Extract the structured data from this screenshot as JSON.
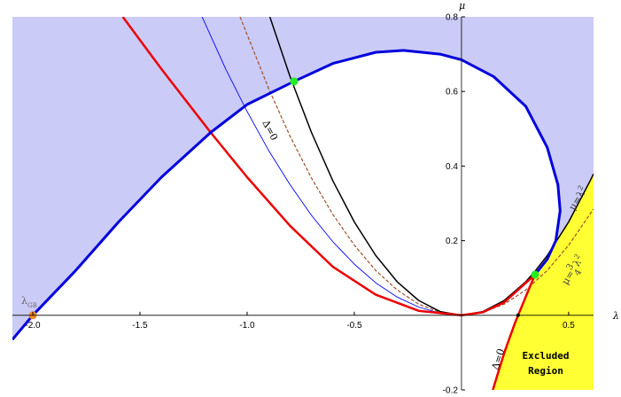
{
  "chart_data": {
    "type": "line",
    "x_label": "λ",
    "y_label": "μ",
    "xlim": [
      -2.095,
      0.616
    ],
    "ylim": [
      -0.2,
      0.8
    ],
    "xticks": [
      {
        "value": -2,
        "label": "-2.0"
      },
      -1.5,
      {
        "value": -1,
        "label": "-1.0"
      },
      -0.5,
      0.5
    ],
    "yticks": [
      -0.2,
      0.2,
      0.4,
      0.6,
      0.8
    ],
    "series": [
      {
        "color": "#0000dd",
        "width": 3,
        "x": [
          -2.095,
          -2.0,
          -1.8,
          -1.6,
          -1.4,
          -1.17,
          -1.0,
          -0.781,
          -0.6,
          -0.4,
          -0.27,
          -0.1,
          0.0,
          0.15,
          0.3,
          0.4,
          0.45,
          0.46,
          0.44,
          0.4,
          0.343
        ],
        "values": [
          -0.065,
          0,
          0.12,
          0.25,
          0.37,
          0.49,
          0.565,
          0.627,
          0.675,
          0.705,
          0.71,
          0.7,
          0.685,
          0.64,
          0.56,
          0.45,
          0.35,
          0.28,
          0.2,
          0.15,
          0.109
        ]
      },
      {
        "color": "#000000",
        "width": 1.5,
        "x": [
          -0.894,
          -0.8,
          -0.7,
          -0.6,
          -0.5,
          -0.4,
          -0.3,
          -0.2,
          -0.1,
          0,
          0.1,
          0.2,
          0.3,
          0.343,
          0.4,
          0.5,
          0.6,
          0.616
        ],
        "values": [
          0.8,
          0.64,
          0.49,
          0.36,
          0.25,
          0.16,
          0.09,
          0.04,
          0.01,
          0,
          0.01,
          0.04,
          0.09,
          0.118,
          0.16,
          0.25,
          0.36,
          0.379
        ]
      },
      {
        "color": "#a0522d",
        "width": 1.2,
        "dash": true,
        "x": [
          -1.033,
          -0.9,
          -0.8,
          -0.7,
          -0.6,
          -0.5,
          -0.4,
          -0.3,
          -0.2,
          -0.1,
          0,
          0.1,
          0.2,
          0.3,
          0.4,
          0.5,
          0.616
        ],
        "values": [
          0.8,
          0.608,
          0.48,
          0.368,
          0.27,
          0.188,
          0.12,
          0.068,
          0.03,
          0.008,
          0,
          0.008,
          0.03,
          0.068,
          0.12,
          0.188,
          0.285
        ]
      },
      {
        "color": "#0000ff",
        "width": 0.9,
        "x": [
          -1.21,
          -1.1,
          -1.0,
          -0.9,
          -0.8,
          -0.7,
          -0.6,
          -0.5,
          -0.4,
          -0.3,
          -0.2,
          -0.1,
          0,
          0.1,
          0.2,
          0.343
        ],
        "values": [
          0.8,
          0.66,
          0.546,
          0.442,
          0.35,
          0.268,
          0.197,
          0.137,
          0.087,
          0.049,
          0.022,
          0.006,
          0,
          0.008,
          0.035,
          0.109
        ]
      },
      {
        "color": "#ee0000",
        "width": 2.5,
        "x": [
          -1.58,
          -1.4,
          -1.17,
          -1.0,
          -0.8,
          -0.6,
          -0.4,
          -0.2,
          0,
          0.1,
          0.2,
          0.343
        ],
        "values": [
          0.8,
          0.66,
          0.49,
          0.37,
          0.24,
          0.13,
          0.055,
          0.012,
          0,
          0.008,
          0.035,
          0.109
        ]
      },
      {
        "color": "#ee0000",
        "width": 2.5,
        "x": [
          0.146,
          0.2,
          0.25,
          0.3,
          0.343
        ],
        "values": [
          -0.2,
          -0.1,
          -0.02,
          0.05,
          0.109
        ]
      }
    ],
    "regions": [
      {
        "color": "#cbcbf7"
      },
      {
        "color": "#ffff33"
      }
    ],
    "points": [
      {
        "x": -2.0,
        "y": 0,
        "color": "#f28c28"
      },
      {
        "x": -0.781,
        "y": 0.627,
        "color": "#22ee22"
      },
      {
        "x": 0.343,
        "y": 0.109,
        "color": "#22ee22"
      },
      {
        "x": 0.264,
        "y": 0,
        "color": "#000000"
      }
    ],
    "annotations": [
      {
        "text": "λ",
        "sub": "GB"
      },
      {
        "text": "Δ=0"
      },
      {
        "text": "μ=λ",
        "sup": "2"
      },
      {
        "text": "μ=",
        "num": "3",
        "den": "4",
        "after": "λ",
        "sup": "2"
      },
      {
        "text": "Δ=0"
      },
      {
        "text": "Excluded"
      },
      {
        "text": "Region"
      }
    ]
  }
}
